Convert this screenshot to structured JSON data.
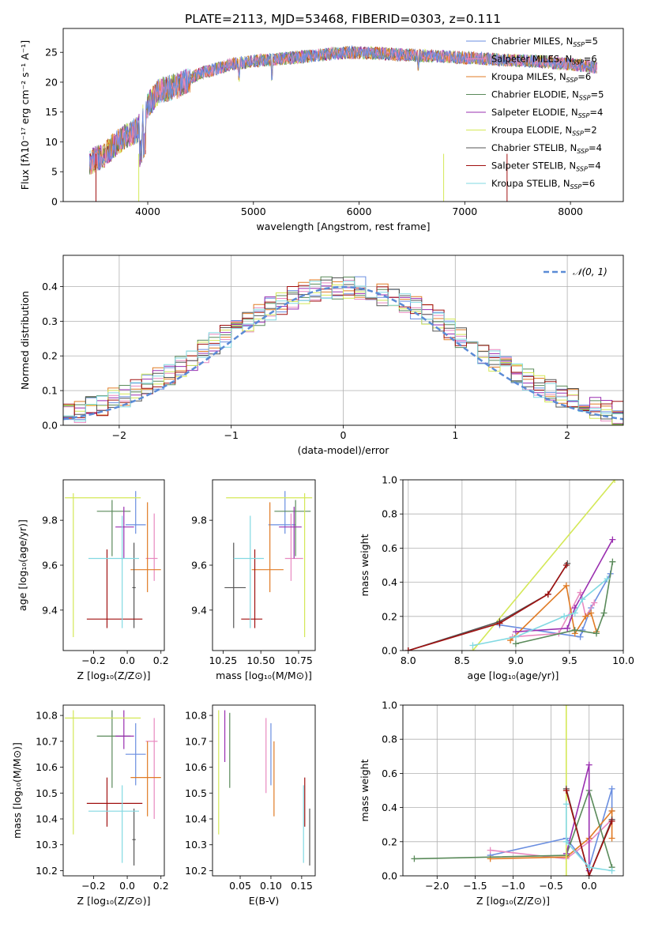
{
  "page_title": "PLATE=2113, MJD=53468, FIBERID=0303, z=0.111",
  "colors": {
    "Chabrier MILES": "#6a8ee0",
    "Salpeter MILES": "#e889c0",
    "Kroupa MILES": "#e07b25",
    "Chabrier ELODIE": "#5a8a5a",
    "Salpeter ELODIE": "#9a2fb0",
    "Kroupa ELODIE": "#d4e857",
    "Chabrier STELIB": "#555555",
    "Salpeter STELIB": "#a01010",
    "Kroupa STELIB": "#82d9e2"
  },
  "chart_data": [
    {
      "id": "spectrum",
      "type": "line",
      "xlabel": "wavelength [Angstrom, rest frame]",
      "ylabel": "Flux [fλ10⁻¹⁷ erg cm⁻² s⁻¹ A⁻¹]",
      "xlim": [
        3200,
        8500
      ],
      "ylim": [
        0,
        29
      ],
      "xticks": [
        4000,
        5000,
        6000,
        7000,
        8000
      ],
      "yticks": [
        0,
        5,
        10,
        15,
        20,
        25
      ],
      "legend_position": "top-right",
      "continuum": {
        "x": [
          3450,
          3600,
          3750,
          3900,
          4000,
          4100,
          4300,
          4500,
          4800,
          5000,
          5300,
          5600,
          5900,
          6200,
          6500,
          6800,
          7100,
          7400,
          7700,
          8000,
          8250
        ],
        "y": [
          6.5,
          8.0,
          10.5,
          12.0,
          16.0,
          18.5,
          19.5,
          21.5,
          23.0,
          23.5,
          24.0,
          24.5,
          25.0,
          24.8,
          24.5,
          24.3,
          24.0,
          23.7,
          23.5,
          23.0,
          22.5
        ]
      },
      "series": [
        {
          "name": "Chabrier MILES",
          "n_ssp": "5"
        },
        {
          "name": "Salpeter MILES",
          "n_ssp": "6"
        },
        {
          "name": "Kroupa MILES",
          "n_ssp": "6"
        },
        {
          "name": "Chabrier ELODIE",
          "n_ssp": "5"
        },
        {
          "name": "Salpeter ELODIE",
          "n_ssp": "4"
        },
        {
          "name": "Kroupa ELODIE",
          "n_ssp": "2"
        },
        {
          "name": "Chabrier STELIB",
          "n_ssp": "4"
        },
        {
          "name": "Salpeter STELIB",
          "n_ssp": "4"
        },
        {
          "name": "Kroupa STELIB",
          "n_ssp": "6"
        }
      ]
    },
    {
      "id": "residuals",
      "type": "histogram",
      "xlabel": "(data-model)/error",
      "ylabel": "Normed distribution",
      "xlim": [
        -2.5,
        2.5
      ],
      "ylim": [
        0,
        0.49
      ],
      "xticks": [
        -2,
        -1,
        0,
        1,
        2
      ],
      "yticks": [
        0.0,
        0.1,
        0.2,
        0.3,
        0.4
      ],
      "legend": "𝒩(0, 1)",
      "legend_position": "top-right",
      "grid": true
    },
    {
      "id": "age_vs_Z",
      "type": "errorbar",
      "xlabel": "Z [log₁₀(Z/Z⊙)]",
      "ylabel": "age  [log₁₀(age/yr)]",
      "xlim": [
        -0.38,
        0.22
      ],
      "ylim": [
        9.22,
        9.98
      ],
      "xticks": [
        -0.2,
        0.0,
        0.2
      ],
      "yticks": [
        9.4,
        9.6,
        9.8
      ],
      "points": [
        {
          "series": "Chabrier MILES",
          "x": 0.05,
          "xerr": [
            0.06,
            0.06
          ],
          "y": 9.78,
          "yerr": [
            0.04,
            0.15
          ]
        },
        {
          "series": "Salpeter MILES",
          "x": 0.16,
          "xerr": [
            0.05,
            0.02
          ],
          "y": 9.63,
          "yerr": [
            0.1,
            0.2
          ]
        },
        {
          "series": "Kroupa MILES",
          "x": 0.12,
          "xerr": [
            0.1,
            0.08
          ],
          "y": 9.58,
          "yerr": [
            0.1,
            0.3
          ]
        },
        {
          "series": "Chabrier ELODIE",
          "x": -0.09,
          "xerr": [
            0.09,
            0.11
          ],
          "y": 9.84,
          "yerr": [
            0.2,
            0.05
          ]
        },
        {
          "series": "Salpeter ELODIE",
          "x": -0.02,
          "xerr": [
            0.05,
            0.06
          ],
          "y": 9.77,
          "yerr": [
            0.14,
            0.09
          ]
        },
        {
          "series": "Kroupa ELODIE",
          "x": -0.32,
          "xerr": [
            0.05,
            0.4
          ],
          "y": 9.9,
          "yerr": [
            0.62,
            0.02
          ]
        },
        {
          "series": "Chabrier STELIB",
          "x": 0.04,
          "xerr": [
            0.01,
            0.01
          ],
          "y": 9.5,
          "yerr": [
            0.18,
            0.2
          ]
        },
        {
          "series": "Salpeter STELIB",
          "x": -0.12,
          "xerr": [
            0.12,
            0.21
          ],
          "y": 9.36,
          "yerr": [
            0.04,
            0.31
          ]
        },
        {
          "series": "Kroupa STELIB",
          "x": -0.03,
          "xerr": [
            0.2,
            0.1
          ],
          "y": 9.63,
          "yerr": [
            0.31,
            0.19
          ]
        }
      ]
    },
    {
      "id": "age_vs_mass",
      "type": "errorbar",
      "xlabel": "mass [log₁₀(M/M⊙)]",
      "xlim": [
        10.18,
        10.86
      ],
      "ylim": [
        9.22,
        9.98
      ],
      "xticks": [
        10.25,
        10.5,
        10.75
      ],
      "yticks": [
        9.4,
        9.6,
        9.8
      ],
      "points": [
        {
          "series": "Chabrier MILES",
          "x": 10.66,
          "xerr": [
            0.11,
            0.07
          ],
          "y": 9.78,
          "yerr": [
            0.04,
            0.15
          ]
        },
        {
          "series": "Salpeter MILES",
          "x": 10.7,
          "xerr": [
            0.04,
            0.08
          ],
          "y": 9.63,
          "yerr": [
            0.1,
            0.2
          ]
        },
        {
          "series": "Kroupa MILES",
          "x": 10.56,
          "xerr": [
            0.12,
            0.09
          ],
          "y": 9.58,
          "yerr": [
            0.1,
            0.3
          ]
        },
        {
          "series": "Chabrier ELODIE",
          "x": 10.73,
          "xerr": [
            0.14,
            0.1
          ],
          "y": 9.84,
          "yerr": [
            0.2,
            0.05
          ]
        },
        {
          "series": "Salpeter ELODIE",
          "x": 10.72,
          "xerr": [
            0.1,
            0.05
          ],
          "y": 9.77,
          "yerr": [
            0.14,
            0.09
          ]
        },
        {
          "series": "Kroupa ELODIE",
          "x": 10.79,
          "xerr": [
            0.52,
            0.05
          ],
          "y": 9.9,
          "yerr": [
            0.62,
            0.02
          ]
        },
        {
          "series": "Chabrier STELIB",
          "x": 10.32,
          "xerr": [
            0.06,
            0.08
          ],
          "y": 9.5,
          "yerr": [
            0.18,
            0.2
          ]
        },
        {
          "series": "Salpeter STELIB",
          "x": 10.46,
          "xerr": [
            0.09,
            0.05
          ],
          "y": 9.36,
          "yerr": [
            0.04,
            0.31
          ]
        },
        {
          "series": "Kroupa STELIB",
          "x": 10.43,
          "xerr": [
            0.11,
            0.09
          ],
          "y": 9.63,
          "yerr": [
            0.31,
            0.19
          ]
        }
      ]
    },
    {
      "id": "mass_weight_vs_age",
      "type": "line",
      "xlabel": "age  [log₁₀(age/yr)]",
      "ylabel": "mass weight",
      "xlim": [
        7.95,
        10.0
      ],
      "ylim": [
        0,
        1
      ],
      "xticks": [
        8.0,
        8.5,
        9.0,
        9.5,
        10.0
      ],
      "yticks": [
        0.0,
        0.2,
        0.4,
        0.6,
        0.8,
        1.0
      ],
      "grid": true,
      "series": [
        {
          "name": "Chabrier MILES",
          "x": [
            8.85,
            9.6,
            9.62,
            9.7,
            9.88
          ],
          "y": [
            0.15,
            0.08,
            0.12,
            0.25,
            0.45
          ]
        },
        {
          "name": "Salpeter MILES",
          "x": [
            8.97,
            9.4,
            9.6,
            9.65,
            9.73
          ],
          "y": [
            0.08,
            0.1,
            0.34,
            0.2,
            0.28
          ]
        },
        {
          "name": "Kroupa MILES",
          "x": [
            8.95,
            9.47,
            9.55,
            9.65,
            9.7,
            9.75
          ],
          "y": [
            0.06,
            0.38,
            0.1,
            0.2,
            0.22,
            0.11
          ]
        },
        {
          "name": "Chabrier ELODIE",
          "x": [
            9.0,
            9.55,
            9.75,
            9.82,
            9.9
          ],
          "y": [
            0.04,
            0.12,
            0.1,
            0.22,
            0.52
          ]
        },
        {
          "name": "Salpeter ELODIE",
          "x": [
            9.0,
            9.48,
            9.55,
            9.9
          ],
          "y": [
            0.11,
            0.13,
            0.25,
            0.65
          ]
        },
        {
          "name": "Kroupa ELODIE",
          "x": [
            8.6,
            9.92
          ],
          "y": [
            0.0,
            1.0
          ]
        },
        {
          "name": "Chabrier STELIB",
          "x": [
            8.0,
            8.85,
            9.3,
            9.48
          ],
          "y": [
            0.0,
            0.17,
            0.33,
            0.51
          ]
        },
        {
          "name": "Salpeter STELIB",
          "x": [
            8.0,
            8.85,
            9.3,
            9.47
          ],
          "y": [
            0.0,
            0.16,
            0.33,
            0.5
          ]
        },
        {
          "name": "Kroupa STELIB",
          "x": [
            8.6,
            9.0,
            9.45,
            9.55,
            9.62,
            9.85
          ],
          "y": [
            0.03,
            0.08,
            0.2,
            0.22,
            0.3,
            0.42
          ]
        }
      ]
    },
    {
      "id": "mass_vs_Z",
      "type": "errorbar",
      "xlabel": "Z [log₁₀(Z/Z⊙)]",
      "ylabel": "mass [log₁₀(M/M⊙)]",
      "xlim": [
        -0.38,
        0.22
      ],
      "ylim": [
        10.18,
        10.84
      ],
      "xticks": [
        -0.2,
        0.0,
        0.2
      ],
      "yticks": [
        10.2,
        10.3,
        10.4,
        10.5,
        10.6,
        10.7,
        10.8
      ],
      "points": [
        {
          "series": "Chabrier MILES",
          "x": 0.05,
          "xerr": [
            0.06,
            0.06
          ],
          "y": 10.65,
          "yerr": [
            0.12,
            0.12
          ]
        },
        {
          "series": "Salpeter MILES",
          "x": 0.16,
          "xerr": [
            0.05,
            0.02
          ],
          "y": 10.7,
          "yerr": [
            0.3,
            0.09
          ]
        },
        {
          "series": "Kroupa MILES",
          "x": 0.12,
          "xerr": [
            0.1,
            0.08
          ],
          "y": 10.56,
          "yerr": [
            0.15,
            0.14
          ]
        },
        {
          "series": "Chabrier ELODIE",
          "x": -0.09,
          "xerr": [
            0.09,
            0.11
          ],
          "y": 10.72,
          "yerr": [
            0.2,
            0.1
          ]
        },
        {
          "series": "Salpeter ELODIE",
          "x": -0.02,
          "xerr": [
            0.05,
            0.06
          ],
          "y": 10.72,
          "yerr": [
            0.05,
            0.1
          ]
        },
        {
          "series": "Kroupa ELODIE",
          "x": -0.32,
          "xerr": [
            0.05,
            0.4
          ],
          "y": 10.79,
          "yerr": [
            0.45,
            0.03
          ]
        },
        {
          "series": "Chabrier STELIB",
          "x": 0.04,
          "xerr": [
            0.01,
            0.01
          ],
          "y": 10.32,
          "yerr": [
            0.1,
            0.12
          ]
        },
        {
          "series": "Salpeter STELIB",
          "x": -0.12,
          "xerr": [
            0.12,
            0.21
          ],
          "y": 10.46,
          "yerr": [
            0.09,
            0.1
          ]
        },
        {
          "series": "Kroupa STELIB",
          "x": -0.03,
          "xerr": [
            0.2,
            0.1
          ],
          "y": 10.43,
          "yerr": [
            0.2,
            0.1
          ]
        }
      ]
    },
    {
      "id": "mass_vs_ebv",
      "type": "errorbar",
      "xlabel": "E(B-V)",
      "xlim": [
        0.005,
        0.172
      ],
      "ylim": [
        10.18,
        10.84
      ],
      "xticks": [
        0.05,
        0.1,
        0.15
      ],
      "yticks": [
        10.2,
        10.3,
        10.4,
        10.5,
        10.6,
        10.7,
        10.8
      ],
      "points": [
        {
          "series": "Chabrier MILES",
          "x": 0.1,
          "xerr": [
            0.0,
            0.0
          ],
          "y": 10.65,
          "yerr": [
            0.12,
            0.12
          ]
        },
        {
          "series": "Salpeter MILES",
          "x": 0.092,
          "xerr": [
            0.0,
            0.0
          ],
          "y": 10.7,
          "yerr": [
            0.2,
            0.09
          ]
        },
        {
          "series": "Kroupa MILES",
          "x": 0.105,
          "xerr": [
            0.0,
            0.0
          ],
          "y": 10.56,
          "yerr": [
            0.15,
            0.14
          ]
        },
        {
          "series": "Chabrier ELODIE",
          "x": 0.033,
          "xerr": [
            0.0,
            0.0
          ],
          "y": 10.72,
          "yerr": [
            0.2,
            0.09
          ]
        },
        {
          "series": "Salpeter ELODIE",
          "x": 0.025,
          "xerr": [
            0.0,
            0.0
          ],
          "y": 10.72,
          "yerr": [
            0.1,
            0.1
          ]
        },
        {
          "series": "Kroupa ELODIE",
          "x": 0.015,
          "xerr": [
            0.0,
            0.0
          ],
          "y": 10.79,
          "yerr": [
            0.45,
            0.03
          ]
        },
        {
          "series": "Chabrier STELIB",
          "x": 0.163,
          "xerr": [
            0.0,
            0.0
          ],
          "y": 10.32,
          "yerr": [
            0.1,
            0.12
          ]
        },
        {
          "series": "Salpeter STELIB",
          "x": 0.155,
          "xerr": [
            0.0,
            0.0
          ],
          "y": 10.46,
          "yerr": [
            0.09,
            0.1
          ]
        },
        {
          "series": "Kroupa STELIB",
          "x": 0.153,
          "xerr": [
            0.0,
            0.0
          ],
          "y": 10.43,
          "yerr": [
            0.2,
            0.1
          ]
        }
      ]
    },
    {
      "id": "mass_weight_vs_Z",
      "type": "line",
      "xlabel": "Z [log₁₀(Z/Z⊙)]",
      "ylabel": "mass weight",
      "xlim": [
        -2.45,
        0.45
      ],
      "ylim": [
        0,
        1
      ],
      "xticks": [
        -2.0,
        -1.5,
        -1.0,
        -0.5,
        0.0
      ],
      "yticks": [
        0.0,
        0.2,
        0.4,
        0.6,
        0.8,
        1.0
      ],
      "grid": true,
      "series": [
        {
          "name": "Chabrier MILES",
          "x": [
            -1.3,
            -0.3,
            0.0,
            0.3,
            0.3
          ],
          "y": [
            0.12,
            0.22,
            0.05,
            0.51,
            0.38
          ]
        },
        {
          "name": "Salpeter MILES",
          "x": [
            -1.3,
            -0.3,
            0.0,
            0.3
          ],
          "y": [
            0.15,
            0.1,
            0.2,
            0.33
          ]
        },
        {
          "name": "Kroupa MILES",
          "x": [
            -1.3,
            -0.3,
            0.0,
            0.3,
            0.3
          ],
          "y": [
            0.1,
            0.11,
            0.22,
            0.38,
            0.22
          ]
        },
        {
          "name": "Chabrier ELODIE",
          "x": [
            -2.3,
            -0.3,
            0.0,
            0.3
          ],
          "y": [
            0.1,
            0.12,
            0.5,
            0.05
          ]
        },
        {
          "name": "Salpeter ELODIE",
          "x": [
            -0.3,
            0.0,
            0.0
          ],
          "y": [
            0.13,
            0.65,
            0.03
          ]
        },
        {
          "name": "Kroupa ELODIE",
          "x": [
            -0.3,
            -0.3
          ],
          "y": [
            0.0,
            1.0
          ]
        },
        {
          "name": "Chabrier STELIB",
          "x": [
            -0.3,
            0.0,
            0.3
          ],
          "y": [
            0.51,
            0.0,
            0.33
          ]
        },
        {
          "name": "Salpeter STELIB",
          "x": [
            -0.3,
            0.0,
            0.3
          ],
          "y": [
            0.5,
            0.0,
            0.32
          ]
        },
        {
          "name": "Kroupa STELIB",
          "x": [
            -0.3,
            -0.3,
            0.0,
            0.3
          ],
          "y": [
            0.42,
            0.2,
            0.05,
            0.03
          ]
        }
      ]
    }
  ]
}
